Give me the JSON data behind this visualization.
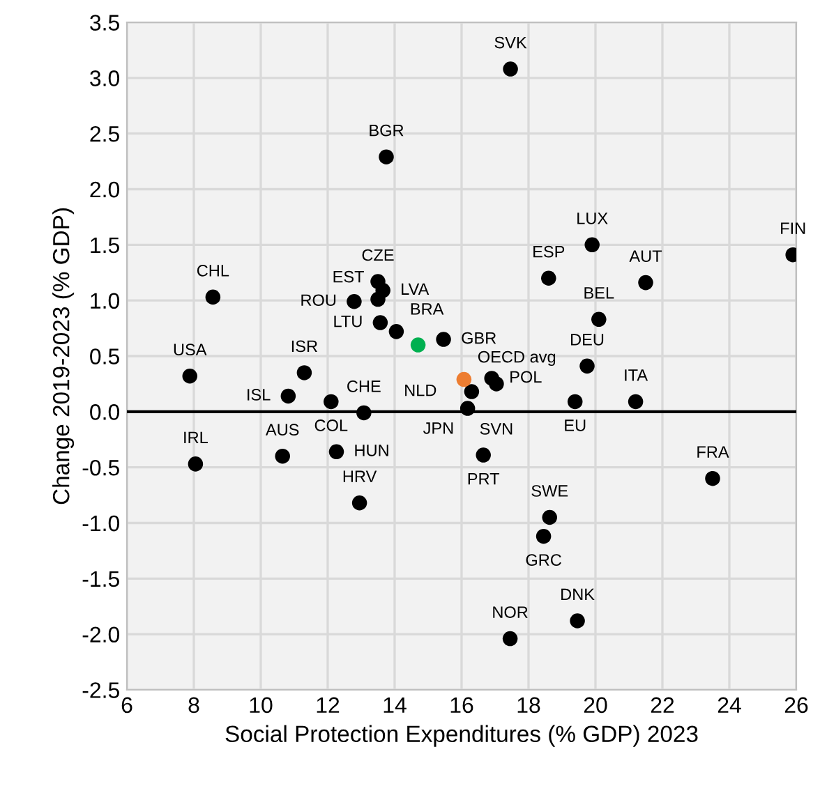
{
  "chart_data": {
    "type": "scatter",
    "xlabel": "Social Protection Expenditures (% GDP) 2023",
    "ylabel": "Change 2019-2023 (% GDP)",
    "xlim": [
      6,
      26
    ],
    "xticks": [
      6,
      8,
      10,
      12,
      14,
      16,
      18,
      20,
      22,
      24,
      26
    ],
    "ylim": [
      -2.5,
      3.5
    ],
    "yticks": [
      {
        "value": -2.5,
        "label": "-2.5"
      },
      {
        "value": -2.0,
        "label": "-2.0"
      },
      {
        "value": -1.5,
        "label": "-1.5"
      },
      {
        "value": -1.0,
        "label": "-1.0"
      },
      {
        "value": -0.5,
        "label": "-0.5"
      },
      {
        "value": 0,
        "label": "0.0"
      },
      {
        "value": 0.5,
        "label": "0.5"
      },
      {
        "value": 1.0,
        "label": "1.0"
      },
      {
        "value": 1.5,
        "label": "1.5"
      },
      {
        "value": 2.0,
        "label": "2.0"
      },
      {
        "value": 2.5,
        "label": "2.5"
      },
      {
        "value": 3.0,
        "label": "3.0"
      },
      {
        "value": 3.5,
        "label": "3.5"
      }
    ],
    "grid": true,
    "marker": "circle",
    "series": [
      {
        "color": "#000000",
        "x": [
          17.46,
          13.75,
          8.57,
          7.88,
          8.05,
          10.82,
          11.3,
          12.1,
          13.08,
          10.65,
          12.95,
          12.26,
          12.79,
          13.5,
          13.65,
          13.5,
          13.57,
          14.05,
          15.46,
          16.9,
          17.04,
          16.3,
          16.18,
          16.65,
          19.39,
          19.75,
          20.1,
          19.9,
          18.6,
          21.5,
          21.2,
          25.9,
          23.5,
          18.63,
          18.45,
          17.45,
          19.46
        ],
        "values": [
          3.08,
          2.29,
          1.03,
          0.32,
          -0.47,
          0.14,
          0.35,
          0.09,
          -0.01,
          -0.4,
          -0.82,
          -0.36,
          0.99,
          1.17,
          1.09,
          1.01,
          0.8,
          0.72,
          0.65,
          0.3,
          0.25,
          0.18,
          0.03,
          -0.39,
          0.09,
          0.41,
          0.83,
          1.5,
          1.2,
          1.16,
          0.09,
          1.41,
          -0.6,
          -0.95,
          -1.12,
          -2.04,
          -1.88
        ]
      },
      {
        "color": "#ed7d31",
        "x": [
          16.07
        ],
        "values": [
          0.29
        ]
      },
      {
        "color": "#00b050",
        "x": [
          14.7
        ],
        "values": [
          0.6
        ]
      }
    ],
    "ref_lines": [
      {
        "axis": "y",
        "value": 0,
        "color": "#000000"
      }
    ],
    "annotations": [
      {
        "text": "SVK",
        "x": 17.46,
        "y": 3.08
      },
      {
        "text": "BGR",
        "x": 13.75,
        "y": 2.29
      },
      {
        "text": "CHL",
        "x": 8.57,
        "y": 1.03
      },
      {
        "text": "USA",
        "x": 7.88,
        "y": 0.32
      },
      {
        "text": "IRL",
        "x": 8.05,
        "y": -0.47
      },
      {
        "text": "ISL",
        "x": 10.82,
        "y": 0.14
      },
      {
        "text": "ISR",
        "x": 11.3,
        "y": 0.35
      },
      {
        "text": "COL",
        "x": 12.1,
        "y": 0.09
      },
      {
        "text": "CHE",
        "x": 13.08,
        "y": -0.01
      },
      {
        "text": "AUS",
        "x": 10.65,
        "y": -0.4
      },
      {
        "text": "HRV",
        "x": 12.95,
        "y": -0.82
      },
      {
        "text": "HUN",
        "x": 12.26,
        "y": -0.36
      },
      {
        "text": "ROU",
        "x": 12.79,
        "y": 0.99
      },
      {
        "text": "CZE",
        "x": 13.5,
        "y": 1.17
      },
      {
        "text": "LVA",
        "x": 13.65,
        "y": 1.09
      },
      {
        "text": "EST",
        "x": 13.5,
        "y": 1.01
      },
      {
        "text": "LTU",
        "x": 13.57,
        "y": 0.8
      },
      {
        "text": "BRA",
        "x": 14.05,
        "y": 0.72
      },
      {
        "text": "GBR",
        "x": 15.46,
        "y": 0.65
      },
      {
        "text": "POL",
        "x": 16.9,
        "y": 0.3
      },
      {
        "text": "SVN",
        "x": 17.04,
        "y": 0.25
      },
      {
        "text": "NLD",
        "x": 16.3,
        "y": 0.18
      },
      {
        "text": "JPN",
        "x": 16.18,
        "y": 0.03
      },
      {
        "text": "OECD avg",
        "x": 16.07,
        "y": 0.29
      },
      {
        "text": "PRT",
        "x": 16.65,
        "y": -0.39
      },
      {
        "text": "EU",
        "x": 19.39,
        "y": 0.09
      },
      {
        "text": "DEU",
        "x": 19.75,
        "y": 0.41
      },
      {
        "text": "BEL",
        "x": 20.1,
        "y": 0.83
      },
      {
        "text": "LUX",
        "x": 19.9,
        "y": 1.5
      },
      {
        "text": "ESP",
        "x": 18.6,
        "y": 1.2
      },
      {
        "text": "AUT",
        "x": 21.5,
        "y": 1.16
      },
      {
        "text": "ITA",
        "x": 21.2,
        "y": 0.09
      },
      {
        "text": "FIN",
        "x": 25.9,
        "y": 1.41
      },
      {
        "text": "FRA",
        "x": 23.5,
        "y": -0.6
      },
      {
        "text": "SWE",
        "x": 18.63,
        "y": -0.95
      },
      {
        "text": "GRC",
        "x": 18.45,
        "y": -1.12
      },
      {
        "text": "NOR",
        "x": 17.45,
        "y": -2.04
      },
      {
        "text": "DNK",
        "x": 19.46,
        "y": -1.88
      }
    ]
  }
}
